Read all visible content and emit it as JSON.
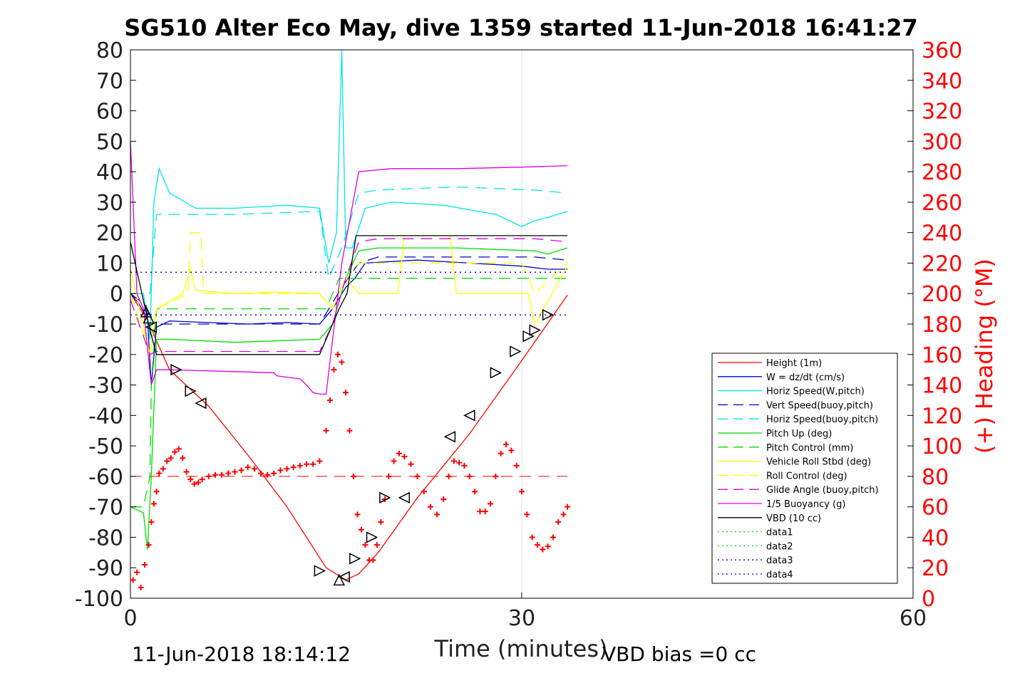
{
  "chart_data": {
    "type": "line",
    "title": "SG510 Alter Eco May, dive 1359 started 11-Jun-2018 16:41:27",
    "xlabel": "Time (minutes)",
    "y2label": "(+) Heading (°M)",
    "xlim": [
      0,
      60
    ],
    "ylim": [
      -100,
      80
    ],
    "y2lim": [
      0,
      360
    ],
    "xticks": [
      0,
      30,
      60
    ],
    "yticks": [
      80,
      70,
      60,
      50,
      40,
      30,
      20,
      10,
      0,
      -10,
      -20,
      -30,
      -40,
      -50,
      -60,
      -70,
      -80,
      -90,
      -100
    ],
    "y2ticks": [
      360,
      340,
      320,
      300,
      280,
      260,
      240,
      220,
      200,
      180,
      160,
      140,
      120,
      100,
      80,
      60,
      40,
      20,
      0
    ],
    "grid": "x only",
    "legend_position": "lower-right",
    "footer_left": "11-Jun-2018 18:14:12",
    "footer_right": "VBD bias =0 cc",
    "colors": {
      "red": "#ff0000",
      "blue": "#0000cc",
      "cyan": "#00e5e5",
      "green": "#00dd00",
      "yellow": "#ffff00",
      "magenta": "#dd00dd",
      "black": "#000000"
    },
    "series": [
      {
        "name": "Height (1m)",
        "color": "#ff0000",
        "style": "solid",
        "x": [
          0,
          1.2,
          3,
          6,
          9,
          12,
          15,
          16.5,
          17.5,
          19,
          22,
          26,
          30,
          33.5
        ],
        "y": [
          0,
          -8,
          -25,
          -37,
          -53,
          -70,
          -90,
          -94,
          -92,
          -85,
          -67,
          -46,
          -22,
          -0.5
        ]
      },
      {
        "name": "W = dz/dt (cm/s)",
        "color": "#0000cc",
        "style": "solid",
        "x": [
          0,
          0.6,
          1.3,
          1.6,
          2.0,
          3,
          6,
          9,
          12,
          14.5,
          15.5,
          16.5,
          17.2,
          18,
          22,
          26,
          30,
          32,
          33.5
        ],
        "y": [
          0,
          -3,
          -8,
          -30,
          -11,
          -9,
          -9.5,
          -10,
          -9.5,
          -10,
          -5,
          2,
          5,
          10,
          11,
          10,
          9,
          8,
          8
        ]
      },
      {
        "name": "Horiz Speed(W,pitch)",
        "color": "#00e5e5",
        "style": "solid",
        "x": [
          0,
          1.0,
          1.5,
          1.8,
          2.2,
          3,
          5,
          8,
          12,
          14.5,
          15.2,
          15.8,
          16.2,
          16.5,
          17,
          18,
          20,
          24,
          28,
          30,
          31,
          32,
          33.5
        ],
        "y": [
          0,
          0,
          -15,
          30,
          41,
          33,
          28,
          28,
          29,
          28,
          10,
          20,
          80,
          15,
          15,
          28,
          30,
          29,
          26,
          22,
          24,
          25,
          27
        ]
      },
      {
        "name": "Vert Speed(buoy,pitch)",
        "color": "#0000cc",
        "style": "dashed",
        "x": [
          0,
          1.2,
          1.6,
          2.0,
          3,
          8,
          14.5,
          16.2,
          17.5,
          19,
          25,
          31,
          33.5
        ],
        "y": [
          0,
          -4,
          -15,
          -10,
          -10,
          -10,
          -10,
          2,
          10,
          12,
          12,
          12,
          11
        ]
      },
      {
        "name": "Horiz Speed(buoy,pitch)",
        "color": "#00e5e5",
        "style": "dashed",
        "x": [
          0,
          1.5,
          2.0,
          3,
          8,
          14.5,
          15.2,
          16.2,
          17.5,
          19,
          25,
          31,
          33.5
        ],
        "y": [
          0,
          0,
          26,
          26,
          26,
          27,
          5,
          15,
          33,
          34,
          35,
          34,
          33
        ]
      },
      {
        "name": "Pitch Up (deg)",
        "color": "#00dd00",
        "style": "solid",
        "x": [
          0,
          1.0,
          1.3,
          1.6,
          2.0,
          3,
          8,
          14.5,
          15.5,
          16.5,
          17.5,
          19,
          25,
          31,
          32,
          33.5
        ],
        "y": [
          -70,
          -72,
          -84,
          -60,
          -15,
          -15,
          -16,
          -15,
          -10,
          5,
          14,
          15,
          15,
          14,
          13,
          15
        ]
      },
      {
        "name": "Pitch Control (mm)",
        "color": "#00dd00",
        "style": "dashed",
        "x": [
          0,
          1.0,
          1.5,
          1.6,
          2.0,
          14.5,
          15.0,
          16.0,
          17.5,
          33.5
        ],
        "y": [
          -70,
          -70,
          -60,
          -30,
          -5,
          -5,
          -5,
          5,
          5,
          5
        ]
      },
      {
        "name": "Vehicle Roll Stbd (deg)",
        "color": "#ffff00",
        "style": "solid",
        "x": [
          0,
          1.5,
          2.0,
          4,
          4.6,
          5.0,
          8,
          11,
          14.5,
          15.5,
          16.5,
          17.5,
          20.5,
          21,
          24.5,
          25,
          30.5,
          31,
          33.5
        ],
        "y": [
          8,
          -20,
          -5,
          0,
          8,
          1,
          0,
          0.5,
          0,
          -5,
          5,
          0,
          0,
          19,
          19,
          0,
          0,
          -10,
          9
        ]
      },
      {
        "name": "Roll Control (deg)",
        "color": "#ffff00",
        "style": "dashed",
        "x": [
          0,
          1.5,
          2.0,
          4.4,
          4.6,
          5.4,
          5.6,
          14.5,
          15.5,
          16.5,
          17.5,
          19,
          25,
          30,
          31,
          33.5
        ],
        "y": [
          0,
          -20,
          -5,
          0,
          20,
          20,
          0,
          0,
          -5,
          5,
          10,
          10,
          10,
          10,
          0,
          10
        ]
      },
      {
        "name": "Glide Angle (buoy,pitch)",
        "color": "#dd00dd",
        "style": "dashed",
        "x": [
          0,
          1.5,
          2.0,
          3,
          14.5,
          15.5,
          16.5,
          17.5,
          19,
          25,
          31,
          33.5
        ],
        "y": [
          -2,
          -20,
          -19,
          -19,
          -19,
          -10,
          5,
          17,
          18,
          18,
          18,
          17
        ]
      },
      {
        "name": "1/5 Buoyancy (g)",
        "color": "#dd00dd",
        "style": "solid",
        "x": [
          0,
          0.5,
          1.0,
          1.6,
          2.0,
          3,
          7,
          11,
          11.2,
          13,
          13.5,
          14,
          14.5,
          15,
          16.2,
          17.5,
          20,
          25,
          30,
          33.5
        ],
        "y": [
          50,
          0,
          -5,
          -30,
          -25,
          -25,
          -25.5,
          -26,
          -27,
          -28,
          -30,
          -32.5,
          -33,
          -33,
          10,
          40,
          41,
          41,
          41.5,
          42
        ]
      },
      {
        "name": "VBD (10 cc)",
        "color": "#000000",
        "style": "solid",
        "x": [
          0,
          1.5,
          2.0,
          3,
          8,
          14.5,
          16.0,
          16.6,
          17.3,
          19,
          25,
          31,
          33.5
        ],
        "y": [
          17,
          -12,
          -20,
          -20,
          -20,
          -20,
          -5,
          0,
          19,
          19,
          19,
          19,
          19
        ]
      },
      {
        "name": "data1",
        "color": "#00dd00",
        "style": "dotted",
        "x": [
          0,
          33.5
        ],
        "y": [
          7,
          7
        ]
      },
      {
        "name": "data2",
        "color": "#00dd00",
        "style": "dotted",
        "x": [
          0,
          33.5
        ],
        "y": [
          -7,
          -7
        ]
      },
      {
        "name": "data3",
        "color": "#0000cc",
        "style": "dotted",
        "x": [
          0,
          33.5
        ],
        "y": [
          7,
          7
        ]
      },
      {
        "name": "data4",
        "color": "#0000cc",
        "style": "dotted",
        "x": [
          0,
          33.5
        ],
        "y": [
          -7,
          -7
        ]
      }
    ],
    "heading_series": {
      "axis": "right",
      "color": "#ff0000",
      "marker": "+",
      "x": [
        0.2,
        0.5,
        0.8,
        1.1,
        1.4,
        1.6,
        1.8,
        2.0,
        2.2,
        2.5,
        2.8,
        3.1,
        3.4,
        3.7,
        4.0,
        4.3,
        4.6,
        4.9,
        5.2,
        5.5,
        6.0,
        6.5,
        7.0,
        7.5,
        8.0,
        8.5,
        9.0,
        9.5,
        10.0,
        10.5,
        11.0,
        11.5,
        12.0,
        12.5,
        13.0,
        13.5,
        14.0,
        14.5,
        15.0,
        15.3,
        15.6,
        15.9,
        16.2,
        16.5,
        16.8,
        17.1,
        17.4,
        17.7,
        18.0,
        18.3,
        18.6,
        18.9,
        19.2,
        19.5,
        19.8,
        20.2,
        20.6,
        21.0,
        21.5,
        22.0,
        22.5,
        23.0,
        23.5,
        24.0,
        24.4,
        24.8,
        25.2,
        25.6,
        26.0,
        26.4,
        26.8,
        27.2,
        27.6,
        28.0,
        28.4,
        28.8,
        29.2,
        29.6,
        30.0,
        30.4,
        30.8,
        31.2,
        31.6,
        32.0,
        32.4,
        32.8,
        33.2,
        33.5
      ],
      "y": [
        12,
        17,
        7,
        22,
        35,
        50,
        62,
        70,
        82,
        85,
        90,
        92,
        96,
        98,
        92,
        83,
        78,
        75,
        76,
        78,
        80,
        81,
        81,
        82,
        83,
        84,
        86,
        85,
        82,
        81,
        82,
        84,
        85,
        86,
        87,
        88,
        88,
        90,
        110,
        130,
        150,
        160,
        155,
        135,
        110,
        80,
        55,
        45,
        35,
        25,
        25,
        35,
        50,
        65,
        80,
        90,
        95,
        93,
        88,
        80,
        70,
        60,
        55,
        65,
        80,
        90,
        89,
        87,
        80,
        70,
        57,
        57,
        62,
        80,
        95,
        101,
        97,
        87,
        70,
        55,
        40,
        35,
        32,
        34,
        40,
        50,
        55,
        60
      ]
    },
    "triangle_markers": {
      "x": [
        1.2,
        1.4,
        1.6,
        3.5,
        4.6,
        5.4,
        14.5,
        16.0,
        16.4,
        17.2,
        18.5,
        19.5,
        21.0,
        24.5,
        26.0,
        28.0,
        29.5,
        30.5,
        31.0,
        32.0
      ],
      "y": [
        -6,
        -8,
        -11,
        -25,
        -32,
        -36,
        -91,
        -94,
        -93,
        -87,
        -80,
        -67,
        -67,
        -47,
        -40,
        -26,
        -19,
        -14,
        -12,
        -7
      ],
      "dir": [
        "up",
        "up",
        "left",
        "right",
        "right",
        "left",
        "right",
        "up",
        "left",
        "right",
        "right",
        "right",
        "left",
        "left",
        "left",
        "right",
        "right",
        "right",
        "right",
        "right"
      ]
    },
    "reference_lines": [
      {
        "axis": "right",
        "value": 80,
        "color": "#ff0000",
        "style": "dashed"
      }
    ]
  }
}
